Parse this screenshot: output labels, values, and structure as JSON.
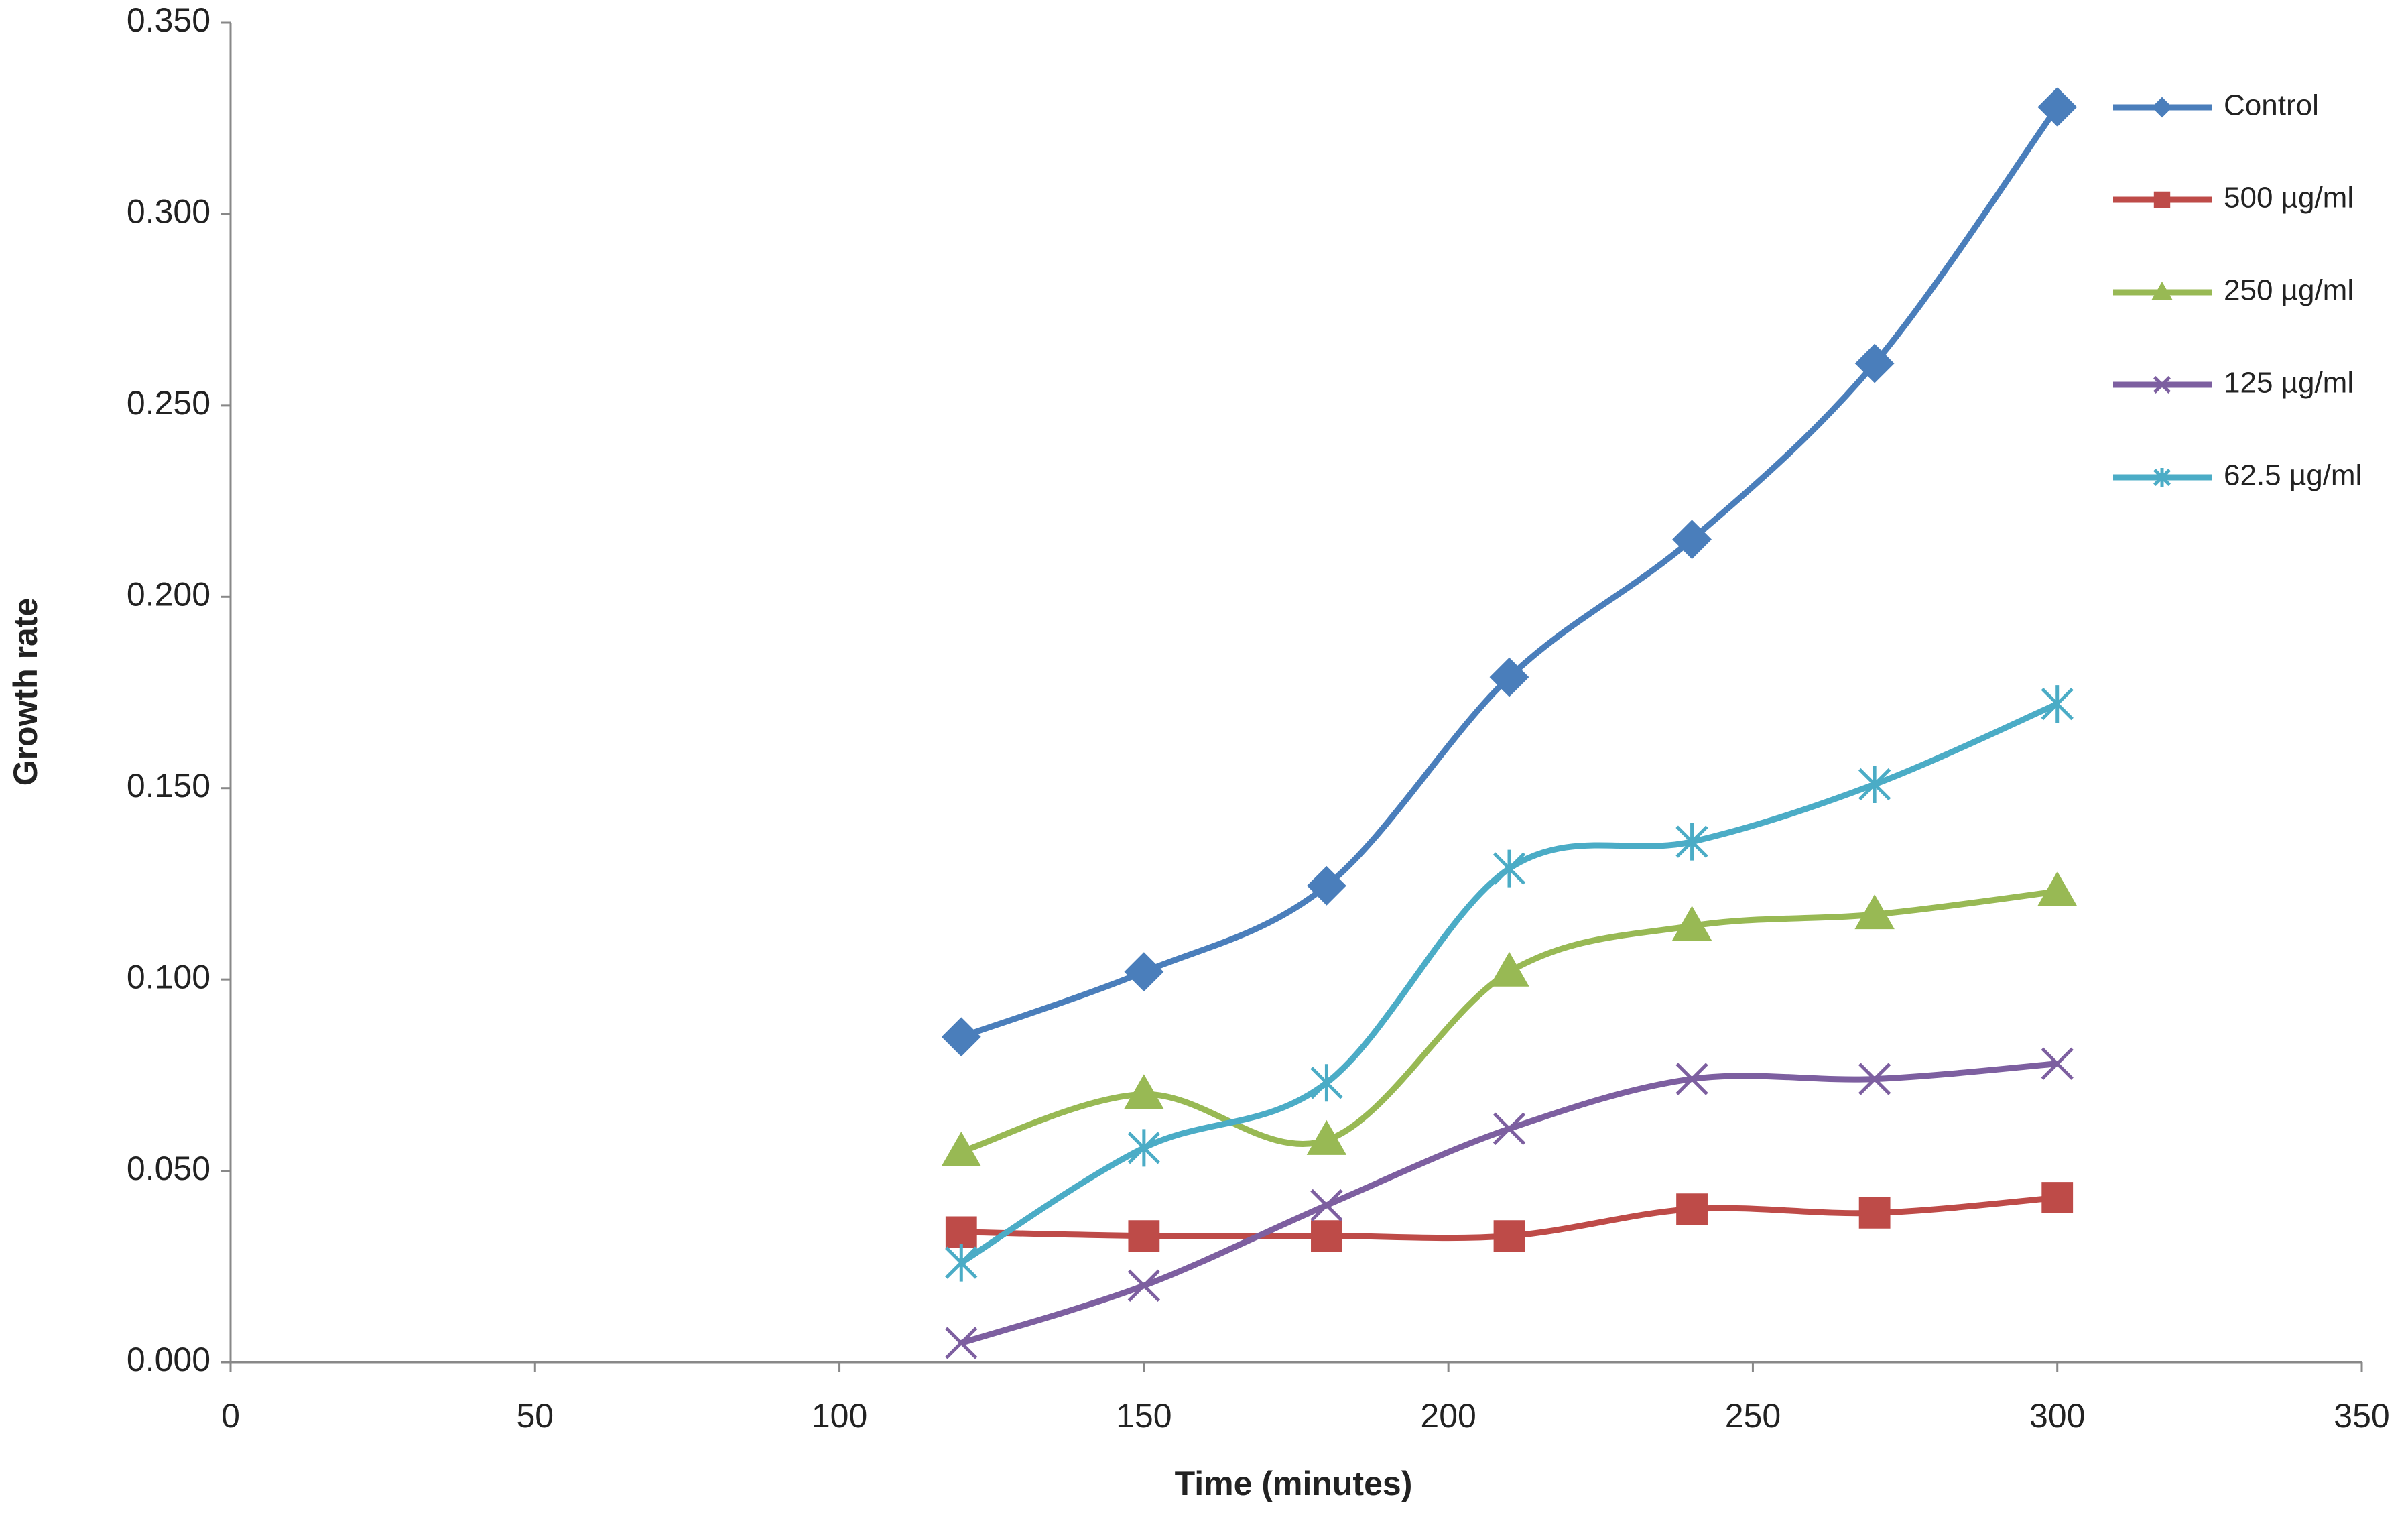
{
  "chart_data": {
    "type": "line",
    "smooth": true,
    "x_label": "Time (minutes)",
    "y_label": "Growth rate",
    "x": [
      120,
      150,
      180,
      210,
      240,
      270,
      300
    ],
    "series": [
      {
        "name": "Control",
        "color": "#4A7EBB",
        "marker": "diamond",
        "values": [
          0.085,
          0.102,
          0.1245,
          0.179,
          0.215,
          0.261,
          0.328
        ]
      },
      {
        "name": "500 µg/ml",
        "color": "#BE4B48",
        "marker": "square",
        "values": [
          0.034,
          0.033,
          0.033,
          0.033,
          0.04,
          0.039,
          0.043
        ]
      },
      {
        "name": "250 µg/ml",
        "color": "#98B954",
        "marker": "triangle",
        "values": [
          0.055,
          0.07,
          0.058,
          0.102,
          0.114,
          0.117,
          0.123
        ]
      },
      {
        "name": "125 µg/ml",
        "color": "#7D5FA0",
        "marker": "x",
        "values": [
          0.005,
          0.02,
          0.041,
          0.061,
          0.074,
          0.074,
          0.078
        ]
      },
      {
        "name": "62.5 µg/ml",
        "color": "#4BACC6",
        "marker": "star",
        "values": [
          0.026,
          0.056,
          0.073,
          0.129,
          0.136,
          0.151,
          0.172
        ]
      }
    ],
    "xlim": [
      0,
      350
    ],
    "xticks": [
      0,
      50,
      100,
      150,
      200,
      250,
      300,
      350
    ],
    "ylim": [
      0,
      0.35
    ],
    "yticks": [
      {
        "value": 0,
        "label": "0.000"
      },
      {
        "value": 0.05,
        "label": "0.050"
      },
      {
        "value": 0.1,
        "label": "0.100"
      },
      {
        "value": 0.15,
        "label": "0.150"
      },
      {
        "value": 0.2,
        "label": "0.200"
      },
      {
        "value": 0.25,
        "label": "0.250"
      },
      {
        "value": 0.3,
        "label": "0.300"
      },
      {
        "value": 0.35,
        "label": "0.350"
      }
    ],
    "grid": false,
    "legend": "right"
  }
}
